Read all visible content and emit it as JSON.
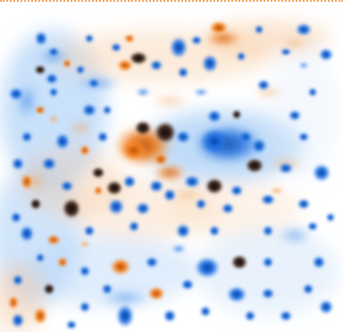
{
  "image": {
    "kind": "two-dye 2D gel overlay (spot map)",
    "colors": {
      "background": "#ffffff",
      "blue_dye": "#1f6fe0",
      "blue_dark": "#0b3f9c",
      "orange_dye": "#f07c1c",
      "orange_dark": "#b04a08",
      "overlap_dark": "#1a1420",
      "border_dots": "#f2a45a"
    }
  }
}
